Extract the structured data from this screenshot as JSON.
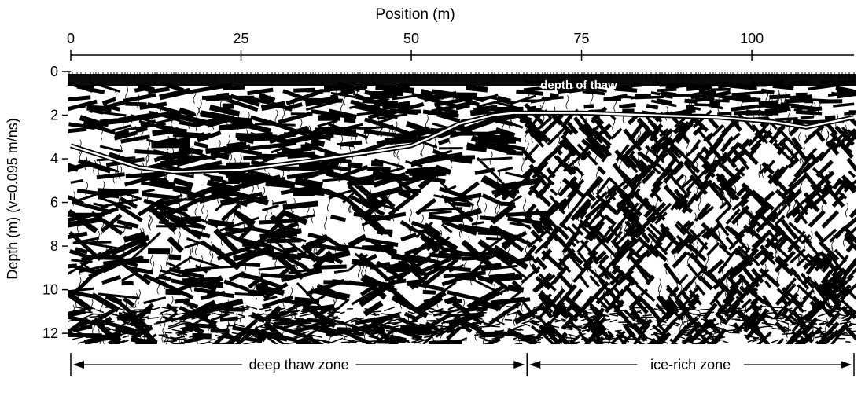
{
  "chart_data": {
    "type": "heatmap",
    "title": "",
    "xlabel": "Position (m)",
    "ylabel": "Depth (m) (v=0.095 m/ns)",
    "xlim": [
      0,
      115
    ],
    "ylim": [
      0,
      12.5
    ],
    "x_ticks": [
      {
        "value": 0,
        "label": "0"
      },
      {
        "value": 25,
        "label": "25"
      },
      {
        "value": 50,
        "label": "50"
      },
      {
        "value": 75,
        "label": "75"
      },
      {
        "value": 100,
        "label": "100"
      }
    ],
    "y_ticks": [
      {
        "value": 0,
        "label": "0"
      },
      {
        "value": 2,
        "label": "2"
      },
      {
        "value": 4,
        "label": "4"
      },
      {
        "value": 6,
        "label": "6"
      },
      {
        "value": 8,
        "label": "8"
      },
      {
        "value": 10,
        "label": "10"
      },
      {
        "value": 12,
        "label": "12"
      }
    ],
    "x_axis_position": "top",
    "thaw_line": {
      "label": "depth of thaw",
      "points": [
        {
          "x": 0,
          "y": 3.4
        },
        {
          "x": 5,
          "y": 3.9
        },
        {
          "x": 10,
          "y": 4.4
        },
        {
          "x": 15,
          "y": 4.6
        },
        {
          "x": 25,
          "y": 4.5
        },
        {
          "x": 35,
          "y": 4.1
        },
        {
          "x": 45,
          "y": 3.65
        },
        {
          "x": 50,
          "y": 3.4
        },
        {
          "x": 53,
          "y": 3.0
        },
        {
          "x": 57,
          "y": 2.4
        },
        {
          "x": 62,
          "y": 2.0
        },
        {
          "x": 65,
          "y": 1.9
        },
        {
          "x": 75,
          "y": 1.9
        },
        {
          "x": 85,
          "y": 2.0
        },
        {
          "x": 95,
          "y": 2.1
        },
        {
          "x": 103,
          "y": 2.3
        },
        {
          "x": 108,
          "y": 2.55
        },
        {
          "x": 115,
          "y": 2.1
        }
      ]
    },
    "zones": [
      {
        "label": "deep thaw zone",
        "x_start": 0,
        "x_end": 67
      },
      {
        "label": "ice-rich zone",
        "x_start": 67,
        "x_end": 115
      }
    ]
  }
}
